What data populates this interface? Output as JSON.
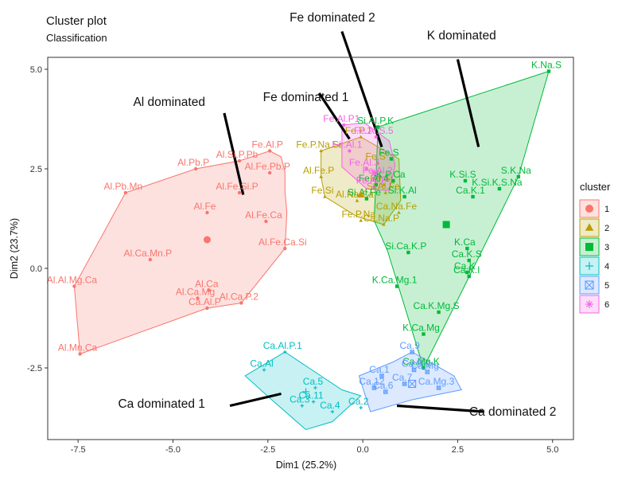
{
  "chart_data": {
    "type": "scatter",
    "title": "Cluster plot",
    "subtitle": "Classification",
    "xlabel": "Dim1 (25.2%)",
    "ylabel": "Dim2 (23.7%)",
    "xlim": [
      -8.3,
      5.55
    ],
    "ylim": [
      -4.3,
      5.3
    ],
    "x_ticks": [
      {
        "v": -7.5,
        "label": "-7.5"
      },
      {
        "v": -5.0,
        "label": "-5.0"
      },
      {
        "v": -2.5,
        "label": "-2.5"
      },
      {
        "v": 0.0,
        "label": "0.0"
      },
      {
        "v": 2.5,
        "label": "2.5"
      },
      {
        "v": 5.0,
        "label": "5.0"
      }
    ],
    "y_ticks": [
      {
        "v": -2.5,
        "label": "-2.5"
      },
      {
        "v": 0.0,
        "label": "0.0"
      },
      {
        "v": 2.5,
        "label": "2.5"
      },
      {
        "v": 5.0,
        "label": "5.0"
      }
    ],
    "grid": false,
    "legend": {
      "title": "cluster",
      "position": "right"
    },
    "clusters": [
      {
        "name": "1",
        "color": "#F8766D",
        "shape": "circle",
        "center": [
          -4.1,
          0.72
        ],
        "hull": [
          [
            -6.25,
            1.9
          ],
          [
            -4.4,
            2.5
          ],
          [
            -3.25,
            2.7
          ],
          [
            -2.45,
            2.95
          ],
          [
            -2.15,
            2.8
          ],
          [
            -2.05,
            2.42
          ],
          [
            -2.05,
            1.95
          ],
          [
            -2.0,
            1.4
          ],
          [
            -2.05,
            0.5
          ],
          [
            -3.2,
            -0.87
          ],
          [
            -4.1,
            -1.0
          ],
          [
            -7.45,
            -2.15
          ],
          [
            -7.6,
            -0.45
          ]
        ],
        "points": [
          {
            "x": -6.25,
            "y": 1.9,
            "label": "Al.Pb.Mn"
          },
          {
            "x": -4.4,
            "y": 2.5,
            "label": "Al.Pb.P"
          },
          {
            "x": -3.25,
            "y": 2.7,
            "label": "Al.Si.P.Pb"
          },
          {
            "x": -2.45,
            "y": 2.95,
            "label": "Fe.Al.P"
          },
          {
            "x": -2.45,
            "y": 2.4,
            "label": "Al.Fe.Pb.P"
          },
          {
            "x": -3.25,
            "y": 1.9,
            "label": "Al.Fe.Si.P"
          },
          {
            "x": -4.1,
            "y": 1.4,
            "label": "Al.Fe"
          },
          {
            "x": -2.55,
            "y": 1.18,
            "label": "Al.Fe.Ca"
          },
          {
            "x": -2.05,
            "y": 0.5,
            "label": "Al.Fe.Ca.Si"
          },
          {
            "x": -5.6,
            "y": 0.22,
            "label": "Al.Ca.Mn.P"
          },
          {
            "x": -7.6,
            "y": -0.45,
            "label": "Al.Al.Mg.Ca"
          },
          {
            "x": -3.2,
            "y": -0.87,
            "label": "Al.Ca.P.2"
          },
          {
            "x": -4.1,
            "y": -1.0,
            "label": "Ca.Al.P"
          },
          {
            "x": -4.35,
            "y": -0.75,
            "label": "Al.Ca.Mg"
          },
          {
            "x": -4.05,
            "y": -0.55,
            "label": "Al.Ca"
          },
          {
            "x": -7.45,
            "y": -2.15,
            "label": "Al.Mn.Ca"
          }
        ]
      },
      {
        "name": "2",
        "color": "#B79F00",
        "shape": "triangle",
        "center": [
          -0.05,
          1.85
        ],
        "hull": [
          [
            -1.1,
            2.95
          ],
          [
            -0.05,
            3.3
          ],
          [
            0.95,
            2.75
          ],
          [
            1.0,
            1.7
          ],
          [
            0.55,
            1.1
          ],
          [
            -0.15,
            1.3
          ],
          [
            -1.0,
            1.8
          ],
          [
            -1.1,
            2.3
          ]
        ],
        "points": [
          {
            "x": -1.1,
            "y": 2.95,
            "label": "Fe.P.Na.Si"
          },
          {
            "x": -0.05,
            "y": 3.3,
            "label": "Fe.P.1"
          },
          {
            "x": -1.1,
            "y": 2.3,
            "label": "Al.Fe.P"
          },
          {
            "x": -1.0,
            "y": 1.8,
            "label": "Fe.Si"
          },
          {
            "x": -0.15,
            "y": 1.7,
            "label": "Al.Na.Ca"
          },
          {
            "x": -0.05,
            "y": 1.2,
            "label": "Fe.P.Na"
          },
          {
            "x": 0.55,
            "y": 1.1,
            "label": "Ca.Na.P"
          },
          {
            "x": 0.95,
            "y": 1.4,
            "label": "Ca.Na.Fe"
          },
          {
            "x": 0.6,
            "y": 1.9,
            "label": "Si.Al.Fe"
          },
          {
            "x": 0.4,
            "y": 2.65,
            "label": "Fe.S"
          },
          {
            "x": 0.55,
            "y": 2.1,
            "label": "Fe.Si"
          }
        ]
      },
      {
        "name": "3",
        "color": "#00BA38",
        "shape": "square",
        "center": [
          2.2,
          1.1
        ],
        "hull": [
          [
            0.4,
            3.55
          ],
          [
            4.9,
            4.95
          ],
          [
            4.1,
            2.3
          ],
          [
            2.65,
            -0.5
          ],
          [
            1.6,
            -2.5
          ],
          [
            0.65,
            0.45
          ],
          [
            0.3,
            1.2
          ],
          [
            0.35,
            2.3
          ]
        ],
        "points": [
          {
            "x": 4.9,
            "y": 4.95,
            "label": "K.Na.S"
          },
          {
            "x": 0.4,
            "y": 3.55,
            "label": "Si.Al.P.K"
          },
          {
            "x": 0.75,
            "y": 2.75,
            "label": "Fe.S"
          },
          {
            "x": 0.8,
            "y": 2.2,
            "label": "K.P.Ca"
          },
          {
            "x": 1.1,
            "y": 1.8,
            "label": "Si.K.Al"
          },
          {
            "x": 0.35,
            "y": 2.1,
            "label": "Fe.Al.4"
          },
          {
            "x": 0.1,
            "y": 1.75,
            "label": "Si.Al.Fe"
          },
          {
            "x": 2.7,
            "y": 2.2,
            "label": "K.Si.S"
          },
          {
            "x": 4.1,
            "y": 2.3,
            "label": "S.K.Na"
          },
          {
            "x": 3.6,
            "y": 2.0,
            "label": "K.Si.K.S.Na"
          },
          {
            "x": 2.9,
            "y": 1.8,
            "label": "Ca.K.1"
          },
          {
            "x": 2.75,
            "y": 0.5,
            "label": "K.Ca"
          },
          {
            "x": 2.8,
            "y": 0.2,
            "label": "Ca.K.S"
          },
          {
            "x": 2.75,
            "y": -0.1,
            "label": "Ca.K"
          },
          {
            "x": 2.8,
            "y": -0.2,
            "label": "Ca.K.I"
          },
          {
            "x": 1.2,
            "y": 0.4,
            "label": "Si.Ca.K.P"
          },
          {
            "x": 0.9,
            "y": -0.45,
            "label": "K.Ca.Mg.1"
          },
          {
            "x": 2.0,
            "y": -1.1,
            "label": "Ca.K.Mg.S"
          },
          {
            "x": 1.6,
            "y": -1.65,
            "label": "K.Ca.Mg"
          },
          {
            "x": 1.6,
            "y": -2.5,
            "label": "Ca.Mg.K"
          }
        ]
      },
      {
        "name": "4",
        "color": "#00BFC4",
        "shape": "boxplus",
        "center": [
          -1.5,
          -3.1
        ],
        "hull": [
          [
            -2.05,
            -2.1
          ],
          [
            -0.55,
            -3.05
          ],
          [
            -0.05,
            -3.2
          ],
          [
            -0.8,
            -3.85
          ],
          [
            -1.5,
            -4.05
          ],
          [
            -2.4,
            -3.3
          ],
          [
            -3.1,
            -2.7
          ]
        ],
        "points": [
          {
            "x": -2.05,
            "y": -2.1,
            "label": "Ca.Al.P.1"
          },
          {
            "x": -2.6,
            "y": -2.55,
            "label": "Ca.Al"
          },
          {
            "x": -1.25,
            "y": -3.0,
            "label": "Ca.5"
          },
          {
            "x": -1.3,
            "y": -3.35,
            "label": "Ca.11"
          },
          {
            "x": -1.6,
            "y": -3.45,
            "label": "Ca.3"
          },
          {
            "x": -0.8,
            "y": -3.6,
            "label": "Ca.4"
          },
          {
            "x": -0.05,
            "y": -3.5,
            "label": "Ca.2"
          }
        ]
      },
      {
        "name": "5",
        "color": "#619CFF",
        "shape": "square-x",
        "center": [
          1.3,
          -2.9
        ],
        "hull": [
          [
            -0.1,
            -2.7
          ],
          [
            0.8,
            -2.35
          ],
          [
            1.3,
            -2.1
          ],
          [
            2.4,
            -2.7
          ],
          [
            2.6,
            -3.05
          ],
          [
            1.3,
            -3.3
          ],
          [
            0.2,
            -3.6
          ]
        ],
        "points": [
          {
            "x": 1.3,
            "y": -2.1,
            "label": "Ca.9"
          },
          {
            "x": 1.35,
            "y": -2.55,
            "label": "Ca.8"
          },
          {
            "x": 0.5,
            "y": -2.7,
            "label": "Ca.1"
          },
          {
            "x": 0.6,
            "y": -3.1,
            "label": "Ca.6"
          },
          {
            "x": 1.7,
            "y": -2.6,
            "label": "Ca.Mg"
          },
          {
            "x": 2.0,
            "y": -3.0,
            "label": "Ca.Mg.3"
          },
          {
            "x": 1.1,
            "y": -2.9,
            "label": "Ca.7"
          },
          {
            "x": 0.3,
            "y": -3.0,
            "label": "Ca.12"
          }
        ]
      },
      {
        "name": "6",
        "color": "#F564E3",
        "shape": "asterisk",
        "center": [
          0.3,
          2.4
        ],
        "hull": [
          [
            -0.55,
            3.6
          ],
          [
            0.05,
            3.65
          ],
          [
            0.7,
            3.2
          ],
          [
            0.85,
            2.6
          ],
          [
            0.7,
            1.95
          ],
          [
            0.1,
            2.0
          ],
          [
            -0.55,
            2.55
          ]
        ],
        "points": [
          {
            "x": -0.5,
            "y": 3.6,
            "label": "Fe.Al.P1"
          },
          {
            "x": 0.35,
            "y": 3.3,
            "label": "Fe.Al.S.5"
          },
          {
            "x": -0.35,
            "y": 2.95,
            "label": "Fe.Al.1"
          },
          {
            "x": 0.1,
            "y": 2.5,
            "label": "Fe.Al.3"
          },
          {
            "x": 0.45,
            "y": 2.3,
            "label": "Fe.Al.2"
          },
          {
            "x": 0.3,
            "y": 2.05,
            "label": "Fe.Al.P"
          }
        ]
      }
    ],
    "annotations": [
      {
        "text": "Al dominated",
        "tx": -5.1,
        "ty": 4.08,
        "from": [
          -3.65,
          3.9
        ],
        "to": [
          -3.15,
          1.85
        ]
      },
      {
        "text": "Fe dominated 1",
        "tx": -1.5,
        "ty": 4.2,
        "from": [
          -1.15,
          4.4
        ],
        "to": [
          -0.35,
          3.25
        ]
      },
      {
        "text": "Fe dominated 2",
        "tx": -0.8,
        "ty": 6.2,
        "from": [
          -0.55,
          5.95
        ],
        "to": [
          0.5,
          3.05
        ]
      },
      {
        "text": "K dominated",
        "tx": 2.6,
        "ty": 5.75,
        "from": [
          2.5,
          5.25
        ],
        "to": [
          3.05,
          3.05
        ]
      },
      {
        "text": "Ca dominated 1",
        "tx": -5.3,
        "ty": -3.5,
        "from": [
          -3.5,
          -3.45
        ],
        "to": [
          -2.15,
          -3.15
        ]
      },
      {
        "text": "Ca dominated 2",
        "tx": 3.95,
        "ty": -3.7,
        "from": [
          3.2,
          -3.6
        ],
        "to": [
          0.9,
          -3.45
        ]
      }
    ]
  }
}
